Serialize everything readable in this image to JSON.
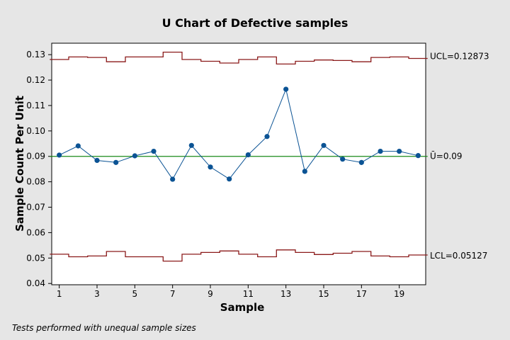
{
  "chart_data": {
    "type": "line",
    "title": "U Chart of Defective samples",
    "xlabel": "Sample",
    "ylabel": "Sample Count Per Unit",
    "xlim": [
      0.6,
      20.4
    ],
    "ylim": [
      0.0395,
      0.1345
    ],
    "xticks": [
      1,
      3,
      5,
      7,
      9,
      11,
      13,
      15,
      17,
      19
    ],
    "yticks": [
      0.04,
      0.05,
      0.06,
      0.07,
      0.08,
      0.09,
      0.1,
      0.11,
      0.12,
      0.13
    ],
    "ytick_labels": [
      "0.04",
      "0.05",
      "0.06",
      "0.07",
      "0.08",
      "0.09",
      "0.10",
      "0.11",
      "0.12",
      "0.13"
    ],
    "grid": false,
    "x": [
      1,
      2,
      3,
      4,
      5,
      6,
      7,
      8,
      9,
      10,
      11,
      12,
      13,
      14,
      15,
      16,
      17,
      18,
      19,
      20
    ],
    "series": [
      {
        "color": "#0b5394",
        "values": [
          0.0905,
          0.0941,
          0.0884,
          0.0876,
          0.0902,
          0.092,
          0.081,
          0.0943,
          0.0858,
          0.0811,
          0.0906,
          0.0978,
          0.1164,
          0.0841,
          0.0943,
          0.0889,
          0.0876,
          0.092,
          0.092,
          0.0903
        ]
      }
    ],
    "center_line": {
      "value": 0.09,
      "label": "Ū=0.09",
      "color": "#1a8a1a"
    },
    "ucl": {
      "label": "UCL=0.12873",
      "color": "#8b1a1a",
      "values": [
        0.1281,
        0.1291,
        0.1289,
        0.1272,
        0.1291,
        0.1291,
        0.131,
        0.1281,
        0.1274,
        0.1267,
        0.1281,
        0.1291,
        0.1263,
        0.1274,
        0.1279,
        0.1277,
        0.1272,
        0.1289,
        0.1291,
        0.1285
      ]
    },
    "lcl": {
      "label": "LCL=0.05127",
      "color": "#8b1a1a",
      "values": [
        0.0515,
        0.0505,
        0.0508,
        0.0526,
        0.0505,
        0.0505,
        0.0488,
        0.0515,
        0.0522,
        0.0528,
        0.0515,
        0.0505,
        0.0532,
        0.0522,
        0.0514,
        0.0519,
        0.0526,
        0.0508,
        0.0505,
        0.0512
      ]
    },
    "footnote": "Tests performed with unequal sample sizes"
  }
}
